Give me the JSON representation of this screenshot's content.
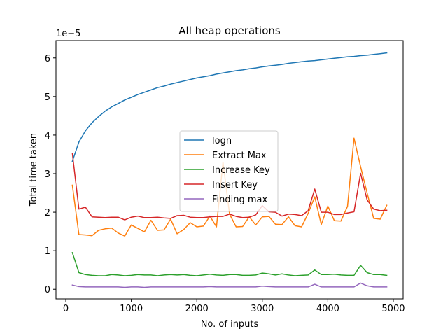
{
  "chart_data": {
    "type": "line",
    "title": "All heap operations",
    "xlabel": "No. of inputs",
    "ylabel": "Total time taken",
    "y_multiplier_label": "1e−5",
    "xlim": [
      -150,
      5150
    ],
    "ylim": [
      -0.25,
      6.45
    ],
    "xticks": [
      0,
      1000,
      2000,
      3000,
      4000,
      5000
    ],
    "xtick_labels": [
      "0",
      "1000",
      "2000",
      "3000",
      "4000",
      "5000"
    ],
    "yticks": [
      0,
      1,
      2,
      3,
      4,
      5,
      6
    ],
    "ytick_labels": [
      "0",
      "1",
      "2",
      "3",
      "4",
      "5",
      "6"
    ],
    "grid": false,
    "legend_position": "center",
    "x": [
      100,
      200,
      300,
      400,
      500,
      600,
      700,
      800,
      900,
      1000,
      1100,
      1200,
      1300,
      1400,
      1500,
      1600,
      1700,
      1800,
      1900,
      2000,
      2100,
      2200,
      2300,
      2400,
      2500,
      2600,
      2700,
      2800,
      2900,
      3000,
      3100,
      3200,
      3300,
      3400,
      3500,
      3600,
      3700,
      3800,
      3900,
      4000,
      4100,
      4200,
      4300,
      4400,
      4500,
      4600,
      4700,
      4800,
      4900
    ],
    "series": [
      {
        "name": "logn",
        "color": "#1f77b4",
        "values": [
          3.32,
          3.82,
          4.11,
          4.32,
          4.48,
          4.62,
          4.73,
          4.82,
          4.91,
          4.98,
          5.05,
          5.11,
          5.17,
          5.23,
          5.27,
          5.32,
          5.36,
          5.4,
          5.44,
          5.48,
          5.51,
          5.54,
          5.58,
          5.61,
          5.64,
          5.67,
          5.69,
          5.72,
          5.74,
          5.77,
          5.79,
          5.81,
          5.83,
          5.86,
          5.88,
          5.9,
          5.92,
          5.93,
          5.95,
          5.97,
          5.99,
          6.01,
          6.03,
          6.04,
          6.06,
          6.07,
          6.09,
          6.11,
          6.13
        ]
      },
      {
        "name": "Extract Max",
        "color": "#ff7f0e",
        "values": [
          2.7,
          1.42,
          1.41,
          1.39,
          1.53,
          1.57,
          1.59,
          1.46,
          1.38,
          1.67,
          1.58,
          1.49,
          1.79,
          1.53,
          1.54,
          1.82,
          1.44,
          1.55,
          1.73,
          1.62,
          1.64,
          1.9,
          1.62,
          3.3,
          1.95,
          1.62,
          1.63,
          1.88,
          1.67,
          1.88,
          1.89,
          1.69,
          1.68,
          1.88,
          1.65,
          1.62,
          1.97,
          2.4,
          1.68,
          2.16,
          1.78,
          1.77,
          2.15,
          3.92,
          3.18,
          2.5,
          1.84,
          1.82,
          2.18
        ]
      },
      {
        "name": "Increase Key",
        "color": "#2ca02c",
        "values": [
          0.95,
          0.43,
          0.38,
          0.36,
          0.35,
          0.35,
          0.38,
          0.37,
          0.35,
          0.36,
          0.38,
          0.37,
          0.37,
          0.35,
          0.37,
          0.38,
          0.37,
          0.38,
          0.36,
          0.35,
          0.37,
          0.39,
          0.37,
          0.36,
          0.38,
          0.38,
          0.36,
          0.36,
          0.37,
          0.42,
          0.4,
          0.37,
          0.4,
          0.37,
          0.35,
          0.36,
          0.37,
          0.5,
          0.38,
          0.38,
          0.39,
          0.37,
          0.36,
          0.36,
          0.62,
          0.43,
          0.38,
          0.38,
          0.36
        ]
      },
      {
        "name": "Insert Key",
        "color": "#d62728",
        "values": [
          3.53,
          2.08,
          2.13,
          1.88,
          1.87,
          1.86,
          1.87,
          1.87,
          1.8,
          1.87,
          1.9,
          1.86,
          1.86,
          1.87,
          1.85,
          1.84,
          1.91,
          1.92,
          1.87,
          1.86,
          1.86,
          1.88,
          1.89,
          1.89,
          1.95,
          1.89,
          1.86,
          1.87,
          1.93,
          2.17,
          2.01,
          2.0,
          1.9,
          1.95,
          1.94,
          1.91,
          2.04,
          2.6,
          2.0,
          2.0,
          1.94,
          1.94,
          1.98,
          2.01,
          3.01,
          2.32,
          2.08,
          2.04,
          2.05
        ]
      },
      {
        "name": "Finding max",
        "color": "#9467bd",
        "values": [
          0.11,
          0.07,
          0.06,
          0.06,
          0.06,
          0.06,
          0.06,
          0.06,
          0.05,
          0.06,
          0.06,
          0.05,
          0.06,
          0.06,
          0.06,
          0.06,
          0.06,
          0.06,
          0.06,
          0.06,
          0.06,
          0.07,
          0.06,
          0.06,
          0.06,
          0.06,
          0.06,
          0.06,
          0.06,
          0.08,
          0.07,
          0.06,
          0.06,
          0.06,
          0.06,
          0.06,
          0.06,
          0.13,
          0.06,
          0.06,
          0.06,
          0.06,
          0.06,
          0.06,
          0.16,
          0.09,
          0.06,
          0.06,
          0.06
        ]
      }
    ]
  }
}
